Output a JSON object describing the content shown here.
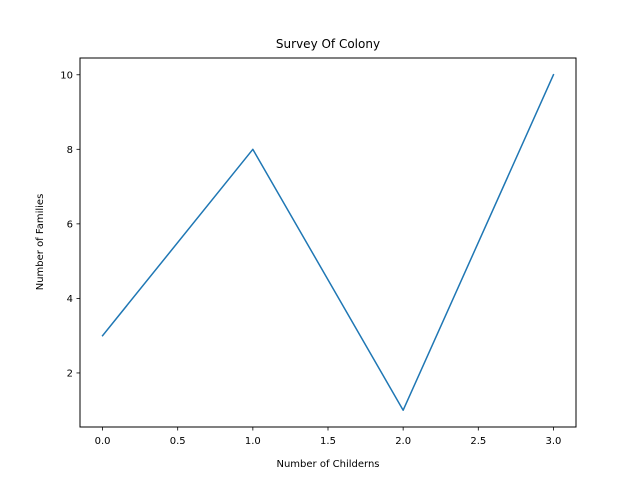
{
  "chart_data": {
    "type": "line",
    "title": "Survey Of Colony",
    "xlabel": "Number of Childerns",
    "ylabel": "Number of Families",
    "x": [
      0,
      1,
      2,
      3
    ],
    "series": [
      {
        "values": [
          3,
          8,
          1,
          10
        ],
        "color": "#1f77b4"
      }
    ],
    "xlim": [
      -0.15,
      3.15
    ],
    "ylim": [
      0.55,
      10.45
    ],
    "xticks": [
      0.0,
      0.5,
      1.0,
      1.5,
      2.0,
      2.5,
      3.0
    ],
    "xtick_labels": [
      "0.0",
      "0.5",
      "1.0",
      "1.5",
      "2.0",
      "2.5",
      "3.0"
    ],
    "yticks": [
      2,
      4,
      6,
      8,
      10
    ],
    "ytick_labels": [
      "2",
      "4",
      "6",
      "8",
      "10"
    ],
    "grid": false,
    "legend": "none"
  }
}
